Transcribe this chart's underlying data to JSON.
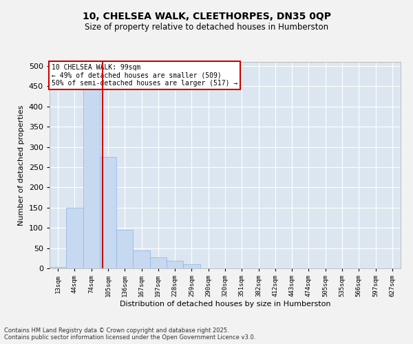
{
  "title_line1": "10, CHELSEA WALK, CLEETHORPES, DN35 0QP",
  "title_line2": "Size of property relative to detached houses in Humberston",
  "xlabel": "Distribution of detached houses by size in Humberston",
  "ylabel": "Number of detached properties",
  "bar_color": "#c6d9f0",
  "bar_edge_color": "#8db4e2",
  "categories": [
    "13sqm",
    "44sqm",
    "74sqm",
    "105sqm",
    "136sqm",
    "167sqm",
    "197sqm",
    "228sqm",
    "259sqm",
    "290sqm",
    "320sqm",
    "351sqm",
    "382sqm",
    "412sqm",
    "443sqm",
    "474sqm",
    "505sqm",
    "535sqm",
    "566sqm",
    "597sqm",
    "627sqm"
  ],
  "values": [
    3,
    150,
    470,
    275,
    95,
    45,
    28,
    18,
    10,
    0,
    0,
    0,
    0,
    0,
    0,
    0,
    0,
    0,
    0,
    0,
    0
  ],
  "ylim": [
    0,
    510
  ],
  "yticks": [
    0,
    50,
    100,
    150,
    200,
    250,
    300,
    350,
    400,
    450,
    500
  ],
  "property_label": "10 CHELSEA WALK: 99sqm",
  "arrow_left": "← 49% of detached houses are smaller (509)",
  "arrow_right": "50% of semi-detached houses are larger (517) →",
  "annotation_box_color": "#ffffff",
  "annotation_box_edge": "#cc0000",
  "vline_color": "#cc0000",
  "vline_x": 2.67,
  "background_color": "#dce6f1",
  "grid_color": "#ffffff",
  "fig_background": "#f2f2f2",
  "footer_line1": "Contains HM Land Registry data © Crown copyright and database right 2025.",
  "footer_line2": "Contains public sector information licensed under the Open Government Licence v3.0."
}
